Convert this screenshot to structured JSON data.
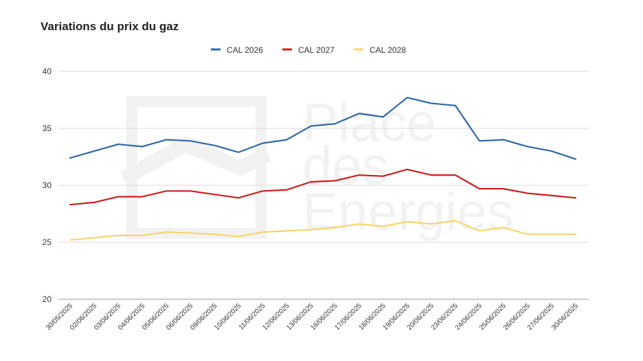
{
  "chart_data": {
    "type": "line",
    "title": "Variations du prix du gaz",
    "xlabel": "",
    "ylabel": "",
    "ylim": [
      20,
      40
    ],
    "yticks": [
      20,
      25,
      30,
      35,
      40
    ],
    "grid": true,
    "legend_position": "top",
    "watermark": [
      "Place",
      "des",
      "Energies"
    ],
    "categories": [
      "30/05/2025",
      "02/06/2025",
      "03/06/2025",
      "04/06/2025",
      "05/06/2025",
      "06/06/2025",
      "09/06/2025",
      "10/06/2025",
      "11/06/2025",
      "12/06/2025",
      "13/06/2025",
      "16/06/2025",
      "17/06/2025",
      "18/06/2025",
      "19/06/2025",
      "20/06/2025",
      "23/06/2025",
      "24/06/2025",
      "25/06/2025",
      "26/06/2025",
      "27/06/2025",
      "30/06/2025"
    ],
    "series": [
      {
        "name": "CAL 2026",
        "color": "#2e67a8",
        "values": [
          32.4,
          33.0,
          33.6,
          33.4,
          34.0,
          33.9,
          33.5,
          32.9,
          33.7,
          34.0,
          35.2,
          35.4,
          36.3,
          36.0,
          37.7,
          37.2,
          37.0,
          33.9,
          34.0,
          33.4,
          33.0,
          32.3
        ]
      },
      {
        "name": "CAL 2027",
        "color": "#cc1f1f",
        "values": [
          28.3,
          28.5,
          29.0,
          29.0,
          29.5,
          29.5,
          29.2,
          28.9,
          29.5,
          29.6,
          30.3,
          30.4,
          30.9,
          30.8,
          31.4,
          30.9,
          30.9,
          29.7,
          29.7,
          29.3,
          29.1,
          28.9
        ]
      },
      {
        "name": "CAL 2028",
        "color": "#f5d56b",
        "values": [
          25.2,
          25.4,
          25.6,
          25.6,
          25.9,
          25.8,
          25.7,
          25.5,
          25.9,
          26.0,
          26.1,
          26.3,
          26.6,
          26.4,
          26.8,
          26.6,
          26.9,
          26.0,
          26.3,
          25.7,
          25.7,
          25.7
        ]
      }
    ]
  }
}
